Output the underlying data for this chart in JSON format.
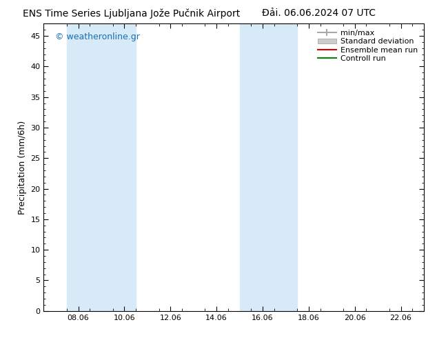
{
  "title_left": "ENS Time Series Ljubljana Jože Pučnik Airport",
  "title_right": "Đải. 06.06.2024 07 UTC",
  "ylabel": "Precipitation (mm/6h)",
  "watermark": "© weatheronline.gr",
  "ylim": [
    0,
    47
  ],
  "yticks": [
    0,
    5,
    10,
    15,
    20,
    25,
    30,
    35,
    40,
    45
  ],
  "xlim_start": 6.5,
  "xlim_end": 23.0,
  "xtick_positions": [
    8,
    10,
    12,
    14,
    16,
    18,
    20,
    22
  ],
  "xtick_labels": [
    "08.06",
    "10.06",
    "12.06",
    "14.06",
    "16.06",
    "18.06",
    "20.06",
    "22.06"
  ],
  "shaded_bands": [
    {
      "x_start": 7.5,
      "x_end": 9.5
    },
    {
      "x_start": 9.5,
      "x_end": 10.5
    },
    {
      "x_start": 15.0,
      "x_end": 16.0
    },
    {
      "x_start": 16.0,
      "x_end": 17.5
    }
  ],
  "shade_color": "#d6eaf8",
  "background_color": "#ffffff",
  "plot_bg_color": "#ffffff",
  "legend_entries": [
    {
      "label": "min/max",
      "color": "#aaaaaa",
      "lw": 1.5
    },
    {
      "label": "Standard deviation",
      "color": "#cccccc",
      "lw": 5
    },
    {
      "label": "Ensemble mean run",
      "color": "#dd0000",
      "lw": 1.5
    },
    {
      "label": "Controll run",
      "color": "#008800",
      "lw": 1.5
    }
  ],
  "title_fontsize": 10,
  "axis_label_fontsize": 9,
  "tick_fontsize": 8,
  "legend_fontsize": 8,
  "watermark_fontsize": 9,
  "watermark_color": "#1a6eb5"
}
